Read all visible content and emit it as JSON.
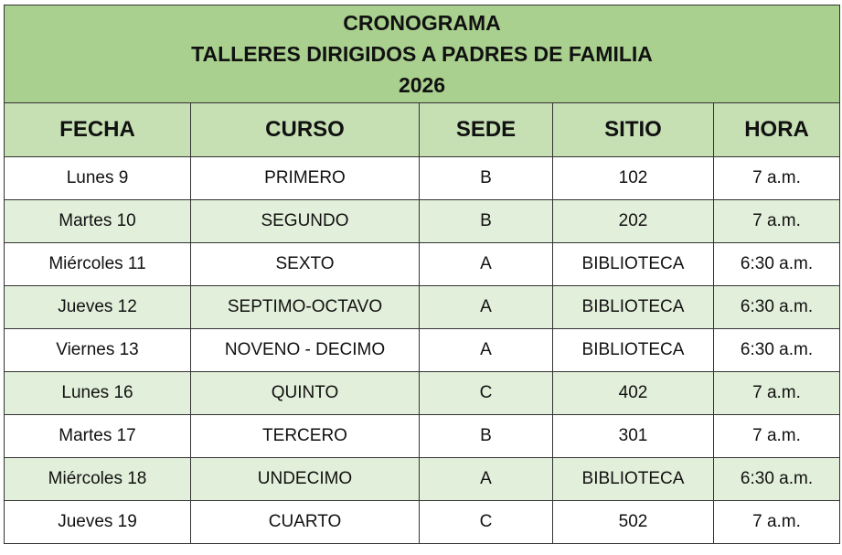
{
  "title": {
    "line1": "CRONOGRAMA",
    "line2": "TALLERES DIRIGIDOS A PADRES DE FAMILIA",
    "line3": "2026"
  },
  "colors": {
    "title_bg": "#a9d08e",
    "header_bg": "#c6e0b4",
    "alt_row_bg": "#e2efda"
  },
  "columns": [
    "FECHA",
    "CURSO",
    "SEDE",
    "SITIO",
    "HORA"
  ],
  "rows": [
    [
      "Lunes 9",
      "PRIMERO",
      "B",
      "102",
      "7 a.m."
    ],
    [
      "Martes 10",
      "SEGUNDO",
      "B",
      "202",
      "7 a.m."
    ],
    [
      "Miércoles 11",
      "SEXTO",
      "A",
      "BIBLIOTECA",
      "6:30 a.m."
    ],
    [
      "Jueves 12",
      "SEPTIMO-OCTAVO",
      "A",
      "BIBLIOTECA",
      "6:30 a.m."
    ],
    [
      "Viernes 13",
      "NOVENO - DECIMO",
      "A",
      "BIBLIOTECA",
      "6:30 a.m."
    ],
    [
      "Lunes 16",
      "QUINTO",
      "C",
      "402",
      "7 a.m."
    ],
    [
      "Martes 17",
      "TERCERO",
      "B",
      "301",
      "7 a.m."
    ],
    [
      "Miércoles 18",
      "UNDECIMO",
      "A",
      "BIBLIOTECA",
      "6:30 a.m."
    ],
    [
      "Jueves 19",
      "CUARTO",
      "C",
      "502",
      "7 a.m."
    ]
  ]
}
